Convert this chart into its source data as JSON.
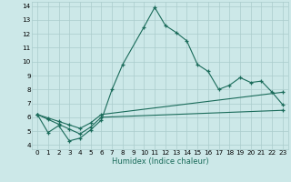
{
  "xlabel": "Humidex (Indice chaleur)",
  "bg_color": "#cce8e8",
  "grid_color": "#aacccc",
  "line_color": "#1a6b5a",
  "xlim": [
    -0.5,
    23.5
  ],
  "ylim": [
    3.7,
    14.3
  ],
  "yticks": [
    4,
    5,
    6,
    7,
    8,
    9,
    10,
    11,
    12,
    13,
    14
  ],
  "xticks": [
    0,
    1,
    2,
    3,
    4,
    5,
    6,
    7,
    8,
    9,
    10,
    11,
    12,
    13,
    14,
    15,
    16,
    17,
    18,
    19,
    20,
    21,
    22,
    23
  ],
  "line1_x": [
    0,
    1,
    2,
    3,
    4,
    5,
    6,
    7,
    8,
    10,
    11,
    12,
    13,
    14,
    15,
    16,
    17,
    18,
    19,
    20,
    21,
    22,
    23
  ],
  "line1_y": [
    6.2,
    4.9,
    5.4,
    4.3,
    4.5,
    5.1,
    5.8,
    8.0,
    9.8,
    12.5,
    13.9,
    12.6,
    12.1,
    11.5,
    9.8,
    9.3,
    8.0,
    8.3,
    8.85,
    8.5,
    8.6,
    7.8,
    6.9
  ],
  "line2_x": [
    0,
    1,
    2,
    3,
    4,
    5,
    6,
    23
  ],
  "line2_y": [
    6.2,
    5.85,
    5.5,
    5.15,
    4.8,
    5.3,
    6.0,
    6.5
  ],
  "line3_x": [
    0,
    1,
    2,
    3,
    4,
    5,
    6,
    23
  ],
  "line3_y": [
    6.2,
    5.95,
    5.7,
    5.45,
    5.2,
    5.6,
    6.2,
    7.8
  ]
}
